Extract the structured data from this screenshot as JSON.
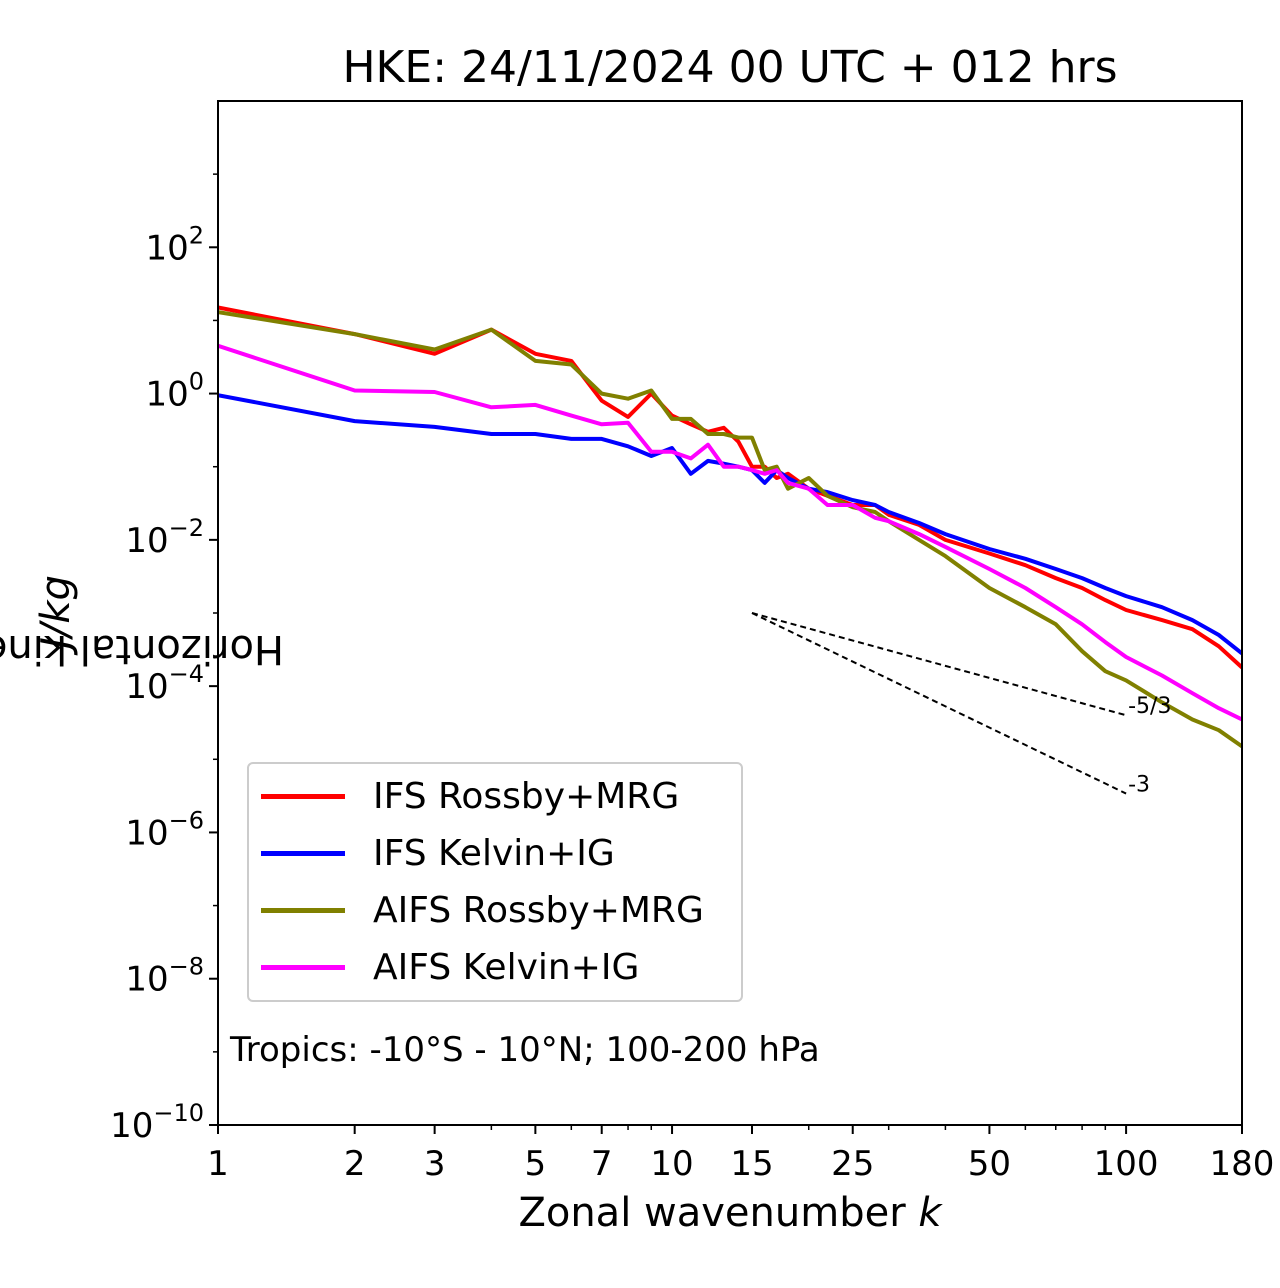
{
  "chart_data": {
    "type": "line",
    "title": "HKE: 24/11/2024 00 UTC + 012 hrs",
    "xlabel_text": "Zonal wavenumber ",
    "xlabel_var": "k",
    "ylabel_text": "Horizontal kinetic energy ",
    "ylabel_unit": "J/kg",
    "xscale": "log",
    "yscale": "log",
    "xlim": [
      1,
      180
    ],
    "ylim": [
      1e-10,
      10000
    ],
    "xticks": [
      1,
      2,
      3,
      5,
      7,
      10,
      15,
      25,
      50,
      100,
      180
    ],
    "xtick_labels": [
      "1",
      "2",
      "3",
      "5",
      "7",
      "10",
      "15",
      "25",
      "50",
      "100",
      "180"
    ],
    "yticks": [
      {
        "value": 1e-10,
        "base": "10",
        "exp": "−10"
      },
      {
        "value": 1e-08,
        "base": "10",
        "exp": "−8"
      },
      {
        "value": 1e-06,
        "base": "10",
        "exp": "−6"
      },
      {
        "value": 0.0001,
        "base": "10",
        "exp": "−4"
      },
      {
        "value": 0.01,
        "base": "10",
        "exp": "−2"
      },
      {
        "value": 1,
        "base": "10",
        "exp": "0"
      },
      {
        "value": 100,
        "base": "10",
        "exp": "2"
      }
    ],
    "legend_position": "lower-left",
    "series": [
      {
        "name": "IFS Rossby+MRG",
        "color": "#ff0000",
        "points": [
          [
            1,
            15
          ],
          [
            2,
            6.5
          ],
          [
            3,
            3.5
          ],
          [
            4,
            7.5
          ],
          [
            5,
            3.5
          ],
          [
            6,
            2.8
          ],
          [
            7,
            0.8
          ],
          [
            8,
            0.48
          ],
          [
            9,
            1.0
          ],
          [
            10,
            0.5
          ],
          [
            11,
            0.38
          ],
          [
            12,
            0.3
          ],
          [
            13,
            0.34
          ],
          [
            14,
            0.22
          ],
          [
            15,
            0.1
          ],
          [
            16,
            0.1
          ],
          [
            17,
            0.07
          ],
          [
            18,
            0.08
          ],
          [
            20,
            0.05
          ],
          [
            22,
            0.04
          ],
          [
            25,
            0.03
          ],
          [
            28,
            0.03
          ],
          [
            30,
            0.022
          ],
          [
            35,
            0.016
          ],
          [
            40,
            0.01
          ],
          [
            50,
            0.0065
          ],
          [
            60,
            0.0045
          ],
          [
            70,
            0.003
          ],
          [
            80,
            0.0022
          ],
          [
            90,
            0.0015
          ],
          [
            100,
            0.0011
          ],
          [
            120,
            0.0008
          ],
          [
            140,
            0.0006
          ],
          [
            160,
            0.00035
          ],
          [
            180,
            0.00018
          ]
        ]
      },
      {
        "name": "IFS Kelvin+IG",
        "color": "#0000ff",
        "points": [
          [
            1,
            0.95
          ],
          [
            2,
            0.42
          ],
          [
            3,
            0.35
          ],
          [
            4,
            0.28
          ],
          [
            5,
            0.28
          ],
          [
            6,
            0.24
          ],
          [
            7,
            0.24
          ],
          [
            8,
            0.19
          ],
          [
            9,
            0.14
          ],
          [
            10,
            0.18
          ],
          [
            11,
            0.08
          ],
          [
            12,
            0.12
          ],
          [
            13,
            0.11
          ],
          [
            14,
            0.1
          ],
          [
            15,
            0.09
          ],
          [
            16,
            0.06
          ],
          [
            17,
            0.09
          ],
          [
            18,
            0.07
          ],
          [
            20,
            0.05
          ],
          [
            22,
            0.045
          ],
          [
            25,
            0.035
          ],
          [
            28,
            0.03
          ],
          [
            30,
            0.024
          ],
          [
            35,
            0.017
          ],
          [
            40,
            0.012
          ],
          [
            50,
            0.0075
          ],
          [
            60,
            0.0055
          ],
          [
            70,
            0.004
          ],
          [
            80,
            0.003
          ],
          [
            90,
            0.0022
          ],
          [
            100,
            0.0017
          ],
          [
            120,
            0.0012
          ],
          [
            140,
            0.0008
          ],
          [
            160,
            0.0005
          ],
          [
            180,
            0.00028
          ]
        ]
      },
      {
        "name": "AIFS Rossby+MRG",
        "color": "#808000",
        "points": [
          [
            1,
            13
          ],
          [
            2,
            6.5
          ],
          [
            3,
            4
          ],
          [
            4,
            7.5
          ],
          [
            5,
            2.8
          ],
          [
            6,
            2.5
          ],
          [
            7,
            1.0
          ],
          [
            8,
            0.85
          ],
          [
            9,
            1.1
          ],
          [
            10,
            0.45
          ],
          [
            11,
            0.45
          ],
          [
            12,
            0.28
          ],
          [
            13,
            0.28
          ],
          [
            14,
            0.25
          ],
          [
            15,
            0.25
          ],
          [
            16,
            0.09
          ],
          [
            17,
            0.1
          ],
          [
            18,
            0.05
          ],
          [
            20,
            0.07
          ],
          [
            22,
            0.04
          ],
          [
            25,
            0.028
          ],
          [
            28,
            0.024
          ],
          [
            30,
            0.018
          ],
          [
            35,
            0.01
          ],
          [
            40,
            0.006
          ],
          [
            50,
            0.0022
          ],
          [
            60,
            0.0012
          ],
          [
            70,
            0.0007
          ],
          [
            80,
            0.0003
          ],
          [
            90,
            0.00016
          ],
          [
            100,
            0.00012
          ],
          [
            120,
            6e-05
          ],
          [
            140,
            3.5e-05
          ],
          [
            160,
            2.5e-05
          ],
          [
            180,
            1.5e-05
          ]
        ]
      },
      {
        "name": "AIFS Kelvin+IG",
        "color": "#ff00ff",
        "points": [
          [
            1,
            4.5
          ],
          [
            2,
            1.1
          ],
          [
            3,
            1.05
          ],
          [
            4,
            0.65
          ],
          [
            5,
            0.7
          ],
          [
            6,
            0.5
          ],
          [
            7,
            0.38
          ],
          [
            8,
            0.4
          ],
          [
            9,
            0.16
          ],
          [
            10,
            0.16
          ],
          [
            11,
            0.13
          ],
          [
            12,
            0.2
          ],
          [
            13,
            0.1
          ],
          [
            14,
            0.1
          ],
          [
            15,
            0.09
          ],
          [
            16,
            0.08
          ],
          [
            17,
            0.09
          ],
          [
            18,
            0.06
          ],
          [
            20,
            0.05
          ],
          [
            22,
            0.03
          ],
          [
            25,
            0.03
          ],
          [
            28,
            0.02
          ],
          [
            30,
            0.018
          ],
          [
            35,
            0.012
          ],
          [
            40,
            0.008
          ],
          [
            50,
            0.004
          ],
          [
            60,
            0.0022
          ],
          [
            70,
            0.0012
          ],
          [
            80,
            0.0007
          ],
          [
            90,
            0.0004
          ],
          [
            100,
            0.00025
          ],
          [
            120,
            0.00014
          ],
          [
            140,
            8e-05
          ],
          [
            160,
            5e-05
          ],
          [
            180,
            3.5e-05
          ]
        ]
      }
    ],
    "reference_lines": [
      {
        "label": "-5/3",
        "x": [
          15,
          100
        ],
        "y": [
          0.001,
          4e-05
        ]
      },
      {
        "label": "-3",
        "x": [
          15,
          100
        ],
        "y": [
          0.001,
          3.4e-06
        ]
      }
    ],
    "annotation": "Tropics: -10°S - 10°N; 100-200 hPa"
  }
}
